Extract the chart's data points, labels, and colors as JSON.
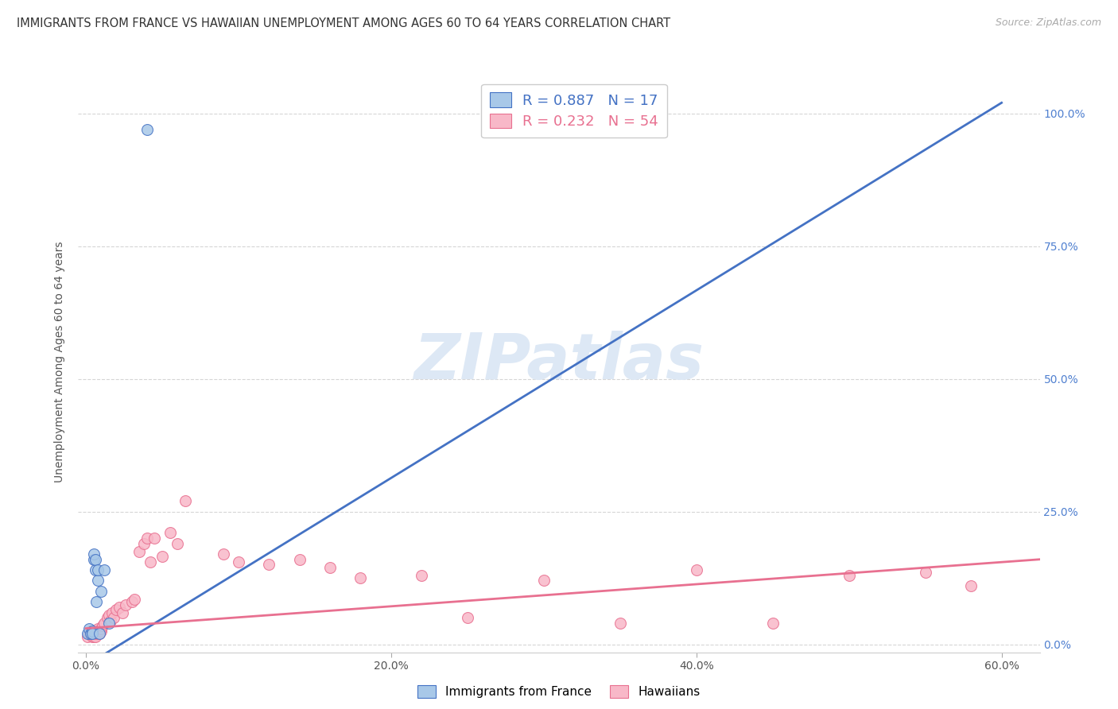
{
  "title": "IMMIGRANTS FROM FRANCE VS HAWAIIAN UNEMPLOYMENT AMONG AGES 60 TO 64 YEARS CORRELATION CHART",
  "source": "Source: ZipAtlas.com",
  "ylabel": "Unemployment Among Ages 60 to 64 years",
  "xlabel_ticks": [
    "0.0%",
    "20.0%",
    "40.0%",
    "60.0%"
  ],
  "xlabel_vals": [
    0.0,
    0.2,
    0.4,
    0.6
  ],
  "ylabel_ticks": [
    0.0,
    0.25,
    0.5,
    0.75,
    1.0
  ],
  "ylabel_labels_right": [
    "0.0%",
    "25.0%",
    "50.0%",
    "75.0%",
    "100.0%"
  ],
  "xlim": [
    -0.005,
    0.625
  ],
  "ylim": [
    -0.015,
    1.08
  ],
  "blue_color": "#a8c8e8",
  "pink_color": "#f8b8c8",
  "blue_line_color": "#4472c4",
  "pink_line_color": "#e87090",
  "watermark_color": "#dde8f5",
  "watermark_text": "ZIPatlas",
  "legend_R1": "R = 0.887",
  "legend_N1": "N = 17",
  "legend_R2": "R = 0.232",
  "legend_N2": "N = 54",
  "blue_scatter_x": [
    0.001,
    0.002,
    0.003,
    0.004,
    0.004,
    0.005,
    0.005,
    0.006,
    0.006,
    0.007,
    0.008,
    0.008,
    0.009,
    0.01,
    0.012,
    0.015,
    0.04
  ],
  "blue_scatter_y": [
    0.02,
    0.03,
    0.02,
    0.025,
    0.02,
    0.16,
    0.17,
    0.14,
    0.16,
    0.08,
    0.12,
    0.14,
    0.02,
    0.1,
    0.14,
    0.04,
    0.97
  ],
  "pink_scatter_x": [
    0.001,
    0.002,
    0.003,
    0.003,
    0.004,
    0.004,
    0.005,
    0.005,
    0.006,
    0.006,
    0.007,
    0.007,
    0.008,
    0.008,
    0.009,
    0.01,
    0.01,
    0.011,
    0.012,
    0.014,
    0.015,
    0.016,
    0.017,
    0.018,
    0.02,
    0.022,
    0.024,
    0.026,
    0.03,
    0.032,
    0.035,
    0.038,
    0.04,
    0.042,
    0.045,
    0.05,
    0.055,
    0.06,
    0.065,
    0.09,
    0.1,
    0.12,
    0.14,
    0.16,
    0.18,
    0.22,
    0.25,
    0.3,
    0.35,
    0.4,
    0.45,
    0.5,
    0.55,
    0.58
  ],
  "pink_scatter_y": [
    0.015,
    0.02,
    0.02,
    0.025,
    0.015,
    0.02,
    0.015,
    0.02,
    0.025,
    0.015,
    0.02,
    0.025,
    0.02,
    0.03,
    0.02,
    0.025,
    0.03,
    0.035,
    0.04,
    0.05,
    0.055,
    0.045,
    0.06,
    0.05,
    0.065,
    0.07,
    0.06,
    0.075,
    0.08,
    0.085,
    0.175,
    0.19,
    0.2,
    0.155,
    0.2,
    0.165,
    0.21,
    0.19,
    0.27,
    0.17,
    0.155,
    0.15,
    0.16,
    0.145,
    0.125,
    0.13,
    0.05,
    0.12,
    0.04,
    0.14,
    0.04,
    0.13,
    0.135,
    0.11
  ],
  "blue_line_x": [
    0.0,
    0.6
  ],
  "blue_line_y": [
    -0.04,
    1.02
  ],
  "pink_line_x": [
    0.0,
    0.625
  ],
  "pink_line_y": [
    0.03,
    0.16
  ],
  "title_fontsize": 10.5,
  "source_fontsize": 9,
  "axis_label_fontsize": 10,
  "tick_fontsize": 10,
  "legend_fontsize": 13,
  "watermark_fontsize": 58,
  "scatter_size": 100,
  "background_color": "#ffffff",
  "right_tick_color": "#5080d0"
}
